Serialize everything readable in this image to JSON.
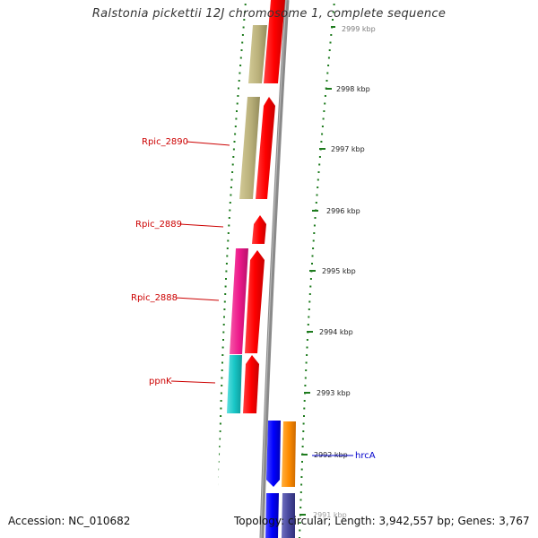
{
  "title": "Ralstonia pickettii 12J chromosome 1, complete sequence",
  "footer": {
    "accession": "Accession: NC_010682",
    "topology": "Topology: circular; Length: 3,942,557 bp; Genes: 3,767"
  },
  "scale": {
    "ticks": [
      {
        "label": "2999 kbp",
        "faded": true
      },
      {
        "label": "2998 kbp"
      },
      {
        "label": "2997 kbp"
      },
      {
        "label": "2996 kbp"
      },
      {
        "label": "2995 kbp"
      },
      {
        "label": "2994 kbp"
      },
      {
        "label": "2993 kbp"
      },
      {
        "label": "2992 kbp"
      },
      {
        "label": "2991 kbp",
        "faded": true
      }
    ]
  },
  "gene_labels": [
    {
      "text": "Rpic_2890",
      "strand": "left"
    },
    {
      "text": "Rpic_2889",
      "strand": "left"
    },
    {
      "text": "Rpic_2888",
      "strand": "left"
    },
    {
      "text": "ppnK",
      "strand": "left"
    },
    {
      "text": "hrcA",
      "strand": "right"
    }
  ],
  "colors": {
    "forward_cds": "#ff0000",
    "reverse_cds": "#0000ff",
    "khaki": "#b9b07a",
    "magenta": "#ee1a8c",
    "cyan": "#18c6c6",
    "orange": "#ff8c00",
    "navy": "#4a4aa0",
    "backbone": "#8a8a8a",
    "tick": "#1e7b1e",
    "label_left": "#cc0000",
    "label_right": "#0000cc"
  }
}
